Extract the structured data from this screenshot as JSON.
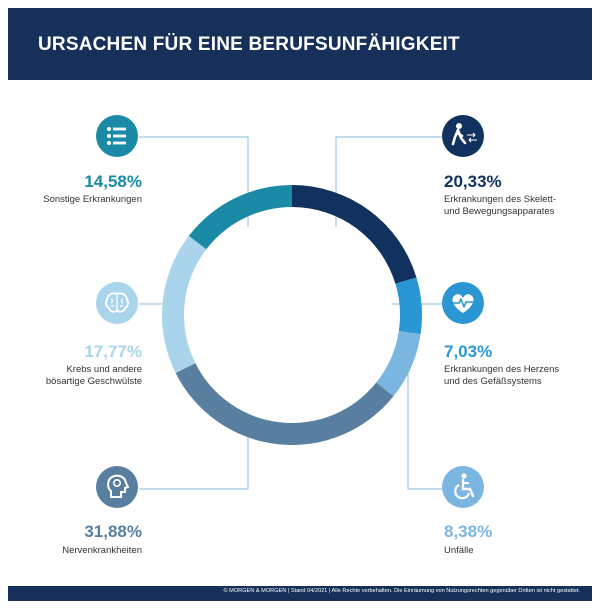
{
  "header": {
    "title": "URSACHEN FÜR EINE BERUFSUNFÄHIGKEIT"
  },
  "footer": {
    "text": "© MORGEN & MORGEN | Stand 04/2021 | Alle Rechte vorbehalten. Die Einräumung von Nutzungsrechten gegenüber Dritten ist nicht gestattet."
  },
  "colors": {
    "header_bg": "#16305a",
    "line": "#9fc7e0"
  },
  "chart_data": {
    "type": "pie",
    "title": "URSACHEN FÜR EINE BERUFSUNFÄHIGKEIT",
    "donut": true,
    "slices": [
      {
        "label_lines": [
          "Erkrankungen des Skelett-",
          "und Bewegungsapparates"
        ],
        "value": 20.33,
        "display": "20,33%",
        "color": "#11325e",
        "icon": "walking-person-icon"
      },
      {
        "label_lines": [
          "Erkrankungen des Herzens",
          "und des Gefäßsystems"
        ],
        "value": 7.03,
        "display": "7,03%",
        "color": "#2a97d4",
        "icon": "heart-pulse-icon"
      },
      {
        "label_lines": [
          "Unfälle"
        ],
        "value": 8.38,
        "display": "8,38%",
        "color": "#7bb6e0",
        "icon": "wheelchair-icon"
      },
      {
        "label_lines": [
          "Nervenkrankheiten"
        ],
        "value": 31.88,
        "display": "31,88%",
        "color": "#587ea0",
        "icon": "head-profile-icon"
      },
      {
        "label_lines": [
          "Krebs und andere",
          "bösartige Geschwülste"
        ],
        "value": 17.77,
        "display": "17,77%",
        "color": "#a9d4ec",
        "icon": "brain-icon"
      },
      {
        "label_lines": [
          "Sonstige Erkrankungen"
        ],
        "value": 14.58,
        "display": "14,58%",
        "color": "#1b8aa6",
        "icon": "list-icon"
      }
    ]
  }
}
